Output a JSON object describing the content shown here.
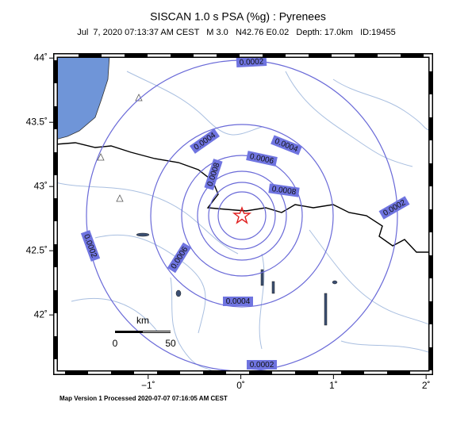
{
  "map": {
    "title": "SISCAN 1.0 s PSA (%g) : Pyrenees",
    "subtitle": "Jul  7, 2020 07:13:37 AM CEST   M 3.0   N42.76 E0.02   Depth: 17.0km   ID:19455",
    "xlim": [
      -2,
      2.05
    ],
    "ylim": [
      41.55,
      44.02
    ],
    "lon_ticks": [
      {
        "value": -1,
        "label": "−1˚"
      },
      {
        "value": 0,
        "label": "0˚"
      },
      {
        "value": 1,
        "label": "1˚"
      },
      {
        "value": 2,
        "label": "2˚"
      }
    ],
    "lat_ticks": [
      {
        "value": 44,
        "label": "44˚"
      },
      {
        "value": 43.5,
        "label": "43.5˚"
      },
      {
        "value": 43,
        "label": "43˚"
      },
      {
        "value": 42.5,
        "label": "42.5˚"
      },
      {
        "value": 42,
        "label": "42˚"
      }
    ],
    "contour_labels": [
      "0.0002",
      "0.0004",
      "0.0004",
      "0.0006",
      "0.0008",
      "0.0008",
      "0.0002",
      "0.0002",
      "0.0006",
      "0.0004",
      "0.0002"
    ],
    "scale": {
      "unit": "km",
      "labels": [
        "0",
        "50"
      ]
    },
    "footer": "Map Version 1 Processed 2020-07-07 07:16:05 AM CEST"
  }
}
